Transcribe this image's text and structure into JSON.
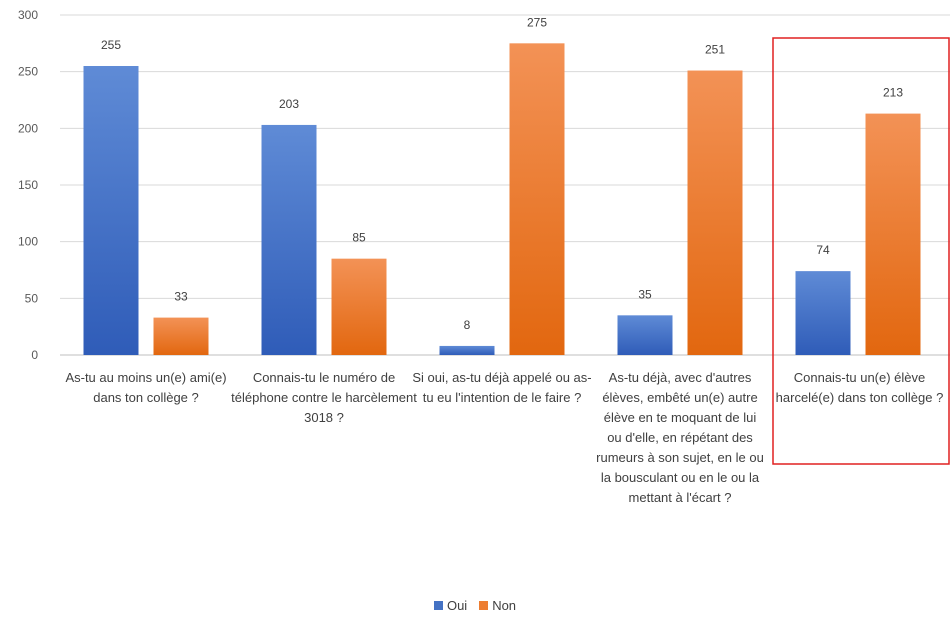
{
  "chart_data": {
    "type": "bar",
    "categories": [
      "As-tu au moins un(e) ami(e) dans ton collège ?",
      "Connais-tu le numéro de téléphone contre le harcèlement 3018 ?",
      "Si oui, as-tu déjà appelé ou as-tu eu l'intention de le faire ?",
      "As-tu déjà, avec d'autres élèves, embêté un(e) autre élève en te moquant de lui ou d'elle, en répétant des rumeurs à son sujet, en le ou la bousculant ou en le ou la mettant à l'écart ?",
      "Connais-tu un(e) élève harcelé(e) dans ton collège ?"
    ],
    "series": [
      {
        "name": "Oui",
        "values": [
          255,
          203,
          8,
          35,
          74
        ],
        "color": "#4472c4"
      },
      {
        "name": "Non",
        "values": [
          33,
          85,
          275,
          251,
          213
        ],
        "color": "#ed7d31"
      }
    ],
    "yticks": [
      "0",
      "50",
      "100",
      "150",
      "200",
      "250",
      "300"
    ],
    "ylim": [
      0,
      300
    ],
    "grid": true,
    "legend_position": "bottom",
    "highlight_category": 4,
    "highlight_color": "#e02020"
  }
}
